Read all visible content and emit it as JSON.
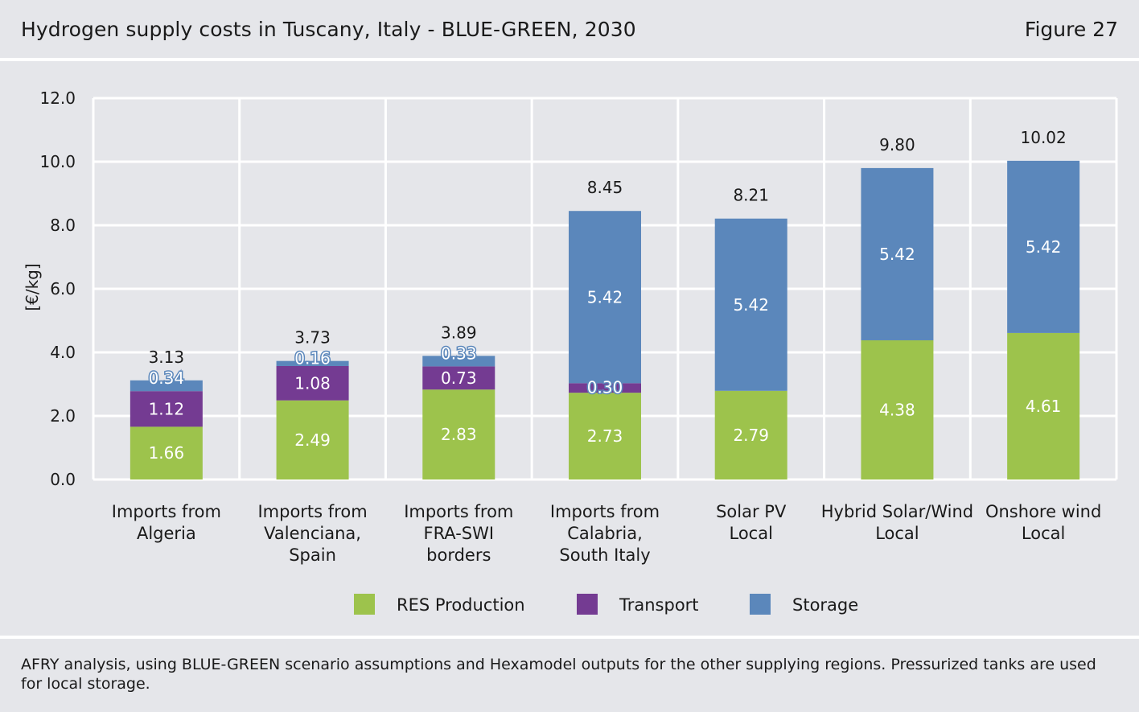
{
  "header": {
    "title": "Hydrogen supply costs in Tuscany, Italy - BLUE-GREEN, 2030",
    "figure_label": "Figure 27"
  },
  "footer": {
    "source": "AFRY analysis, using BLUE-GREEN scenario assumptions and Hexamodel outputs for the other supplying regions. Pressurized tanks are used for local storage."
  },
  "chart_data": {
    "type": "bar",
    "stacked": true,
    "ylabel": "[€/kg]",
    "ylim": [
      0,
      12
    ],
    "yticks": [
      "0.0",
      "2.0",
      "4.0",
      "6.0",
      "8.0",
      "10.0",
      "12.0"
    ],
    "grid": true,
    "legend_position": "bottom",
    "categories": [
      [
        "Imports from",
        "Algeria"
      ],
      [
        "Imports from",
        "Valenciana,",
        "Spain"
      ],
      [
        "Imports from",
        "FRA-SWI",
        "borders"
      ],
      [
        "Imports from",
        "Calabria,",
        "South Italy"
      ],
      [
        "Solar PV",
        "Local"
      ],
      [
        "Hybrid Solar/Wind",
        "Local"
      ],
      [
        "Onshore wind",
        "Local"
      ]
    ],
    "series": [
      {
        "name": "RES Production",
        "color": "#9dc34c",
        "values": [
          1.66,
          2.49,
          2.83,
          2.73,
          2.79,
          4.38,
          4.61
        ],
        "labels": [
          "1.66",
          "2.49",
          "2.83",
          "2.73",
          "2.79",
          "4.38",
          "4.61"
        ]
      },
      {
        "name": "Transport",
        "color": "#743b92",
        "values": [
          1.12,
          1.08,
          0.73,
          0.3,
          0,
          0,
          0
        ],
        "labels": [
          "1.12",
          "1.08",
          "0.73",
          "0.30",
          "",
          "",
          ""
        ]
      },
      {
        "name": "Storage",
        "color": "#5b87bb",
        "values": [
          0.34,
          0.16,
          0.33,
          5.42,
          5.42,
          5.42,
          5.42
        ],
        "labels": [
          "0.34",
          "0.16",
          "0.33",
          "5.42",
          "5.42",
          "5.42",
          "5.42"
        ]
      }
    ],
    "totals": [
      "3.13",
      "3.73",
      "3.89",
      "8.45",
      "8.21",
      "9.80",
      "10.02"
    ]
  }
}
